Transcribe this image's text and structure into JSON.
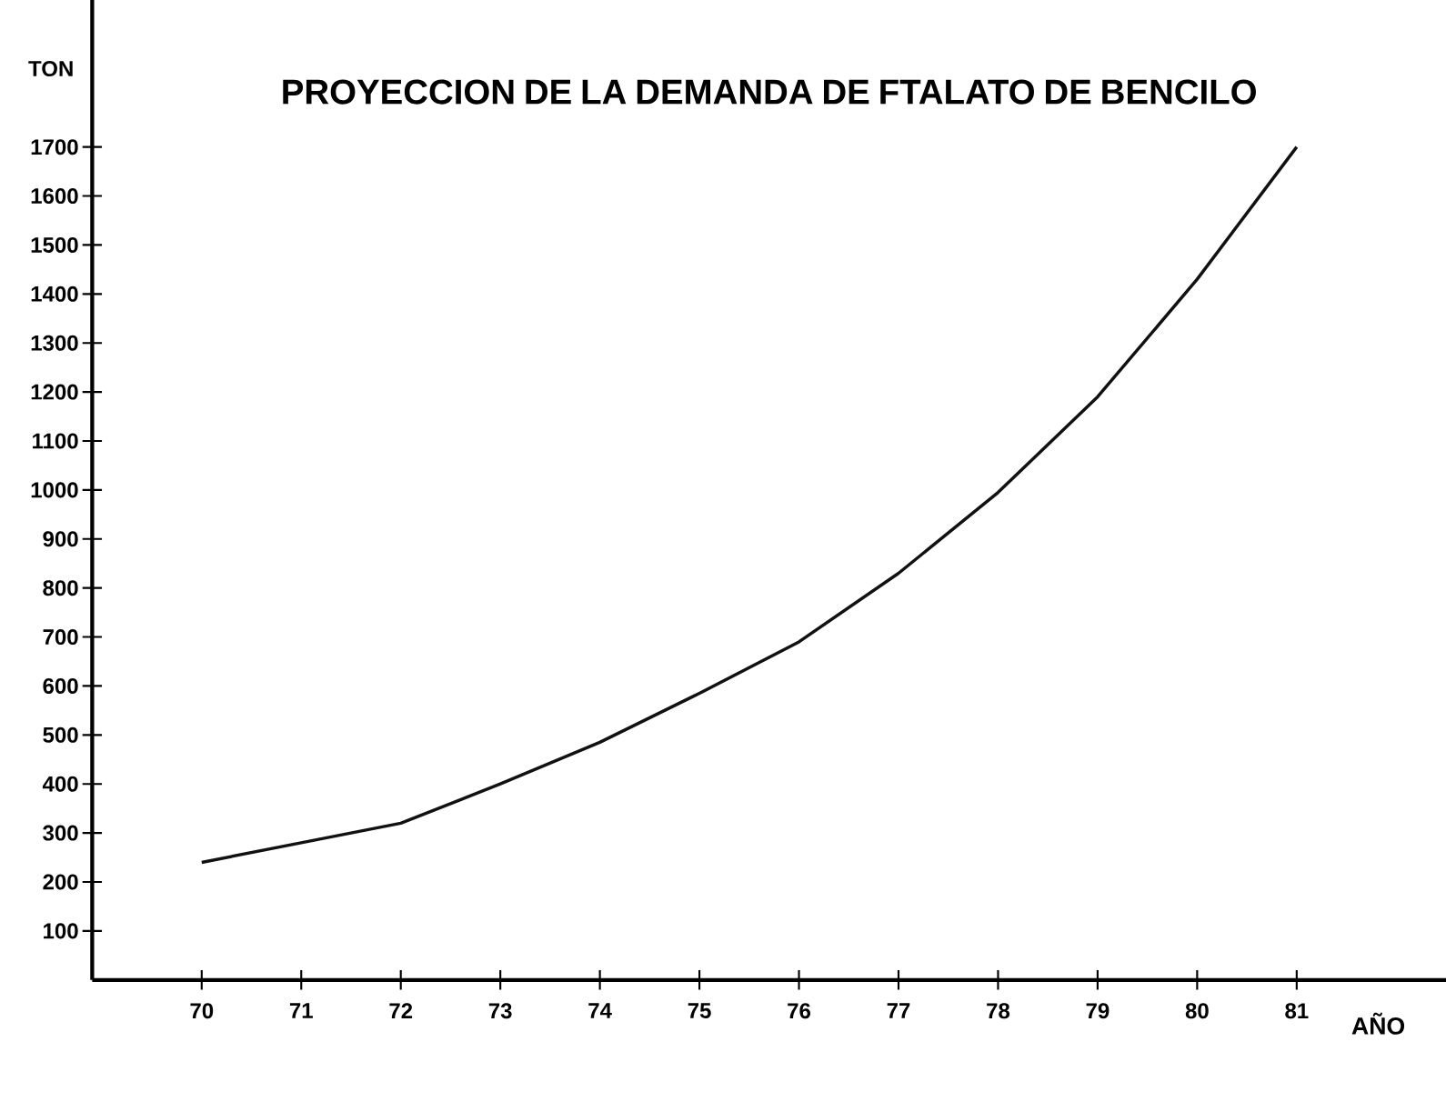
{
  "chart_data": {
    "type": "line",
    "title": "PROYECCION DE LA DEMANDA DE FTALATO DE BENCILO",
    "xlabel": "AÑO",
    "ylabel": "TON",
    "x": [
      70,
      71,
      72,
      73,
      74,
      75,
      76,
      77,
      78,
      79,
      80,
      81
    ],
    "values": [
      240,
      280,
      320,
      400,
      485,
      585,
      690,
      830,
      995,
      1190,
      1430,
      1700
    ],
    "color": "#111111",
    "xlim": [
      68.9,
      82.5
    ],
    "ylim": [
      0,
      2000
    ],
    "xticks": [
      70,
      71,
      72,
      73,
      74,
      75,
      76,
      77,
      78,
      79,
      80,
      81
    ],
    "yticks": [
      100,
      200,
      300,
      400,
      500,
      600,
      700,
      800,
      900,
      1000,
      1100,
      1200,
      1300,
      1400,
      1500,
      1600,
      1700
    ],
    "marker": "none",
    "line_style": "solid"
  }
}
